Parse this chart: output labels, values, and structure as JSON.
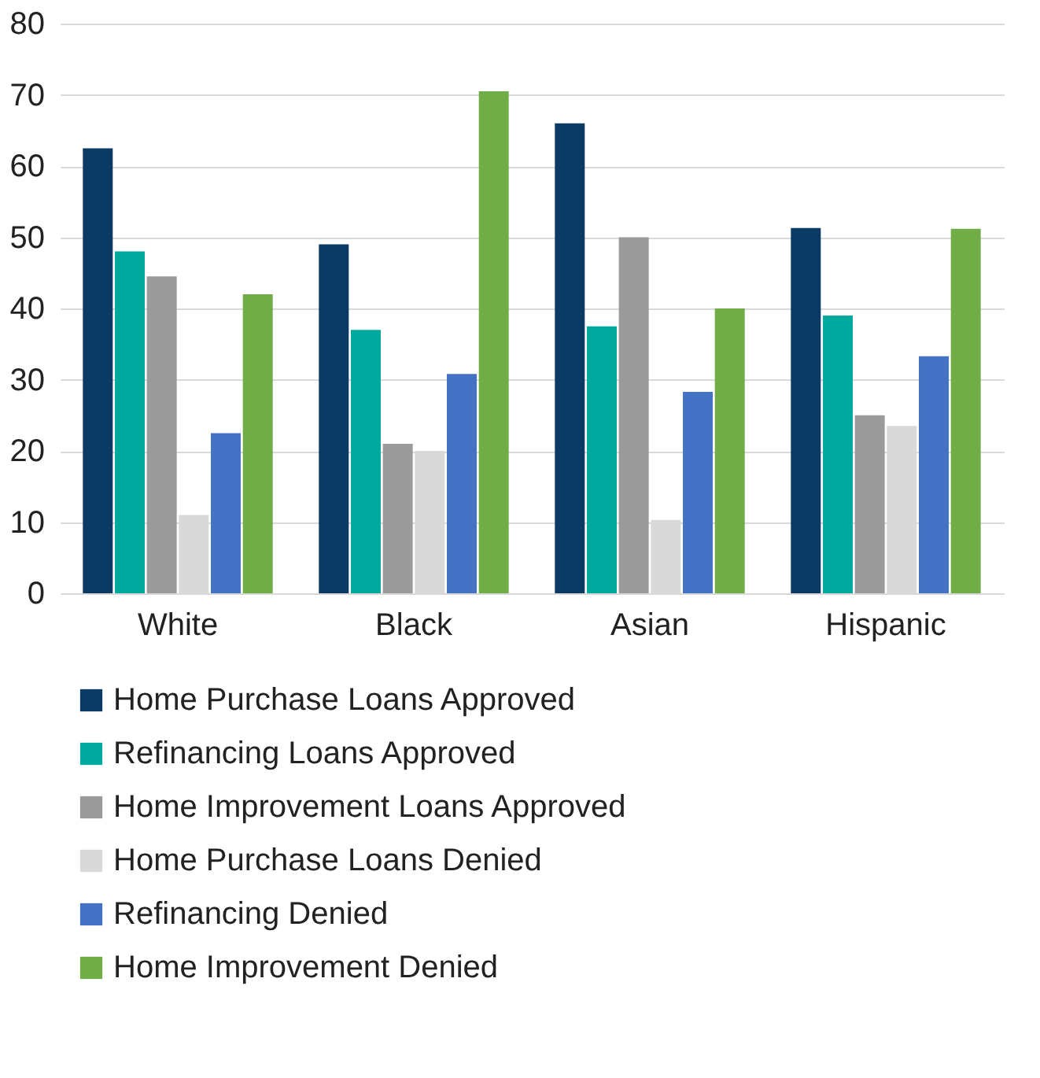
{
  "chart_data": {
    "type": "bar",
    "categories": [
      "White",
      "Black",
      "Asian",
      "Hispanic"
    ],
    "series": [
      {
        "name": "Home Purchase Loans Approved",
        "color": "#0b3a64",
        "values": [
          62.5,
          49,
          66,
          51.3
        ]
      },
      {
        "name": "Refinancing Loans Approved",
        "color": "#00a99d",
        "values": [
          48,
          37,
          37.5,
          39
        ]
      },
      {
        "name": "Home Improvement Loans Approved",
        "color": "#9b9b9b",
        "values": [
          44.5,
          21,
          50,
          25
        ]
      },
      {
        "name": "Home Purchase Loans Denied",
        "color": "#d9d9d9",
        "values": [
          11,
          20,
          10.3,
          23.5
        ]
      },
      {
        "name": "Refinancing Denied",
        "color": "#4472c4",
        "values": [
          22.5,
          30.8,
          28.3,
          33.3
        ]
      },
      {
        "name": "Home Improvement Denied",
        "color": "#70ad47",
        "values": [
          42,
          70.5,
          40,
          51.2
        ]
      }
    ],
    "ylim": [
      0,
      80
    ],
    "yticks": [
      0,
      10,
      20,
      30,
      40,
      50,
      60,
      70,
      80
    ],
    "grid": "y",
    "legend": "bottom"
  }
}
